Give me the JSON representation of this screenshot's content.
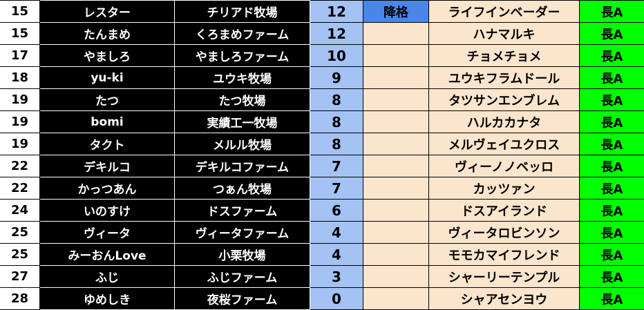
{
  "colors": {
    "score_bg": "#a4c2f4",
    "status_bg": "#fce5cd",
    "demote_bg": "#4a86e8",
    "grade_bg": "#00ff00",
    "name_bg": "#000000"
  },
  "rows": [
    {
      "rank": "15",
      "name": "レスター",
      "farm": "チリアド牧場",
      "score": "12",
      "status": "降格",
      "horse": "ライフインベーダー",
      "grade": "長A"
    },
    {
      "rank": "15",
      "name": "たんまめ",
      "farm": "くろまめファーム",
      "score": "12",
      "status": "",
      "horse": "ハナマルキ",
      "grade": "長A"
    },
    {
      "rank": "17",
      "name": "やましろ",
      "farm": "やましろファーム",
      "score": "10",
      "status": "",
      "horse": "チョメチョメ",
      "grade": "長A"
    },
    {
      "rank": "18",
      "name": "yu-ki",
      "farm": "ユウキ牧場",
      "score": "9",
      "status": "",
      "horse": "ユウキフラムドール",
      "grade": "長A"
    },
    {
      "rank": "19",
      "name": "たつ",
      "farm": "たつ牧場",
      "score": "8",
      "status": "",
      "horse": "タツサンエンブレム",
      "grade": "長A"
    },
    {
      "rank": "19",
      "name": "bomi",
      "farm": "実績工一牧場",
      "score": "8",
      "status": "",
      "horse": "ハルカカナタ",
      "grade": "長A"
    },
    {
      "rank": "19",
      "name": "タクト",
      "farm": "メルル牧場",
      "score": "8",
      "status": "",
      "horse": "メルヴェイユクロス",
      "grade": "長A"
    },
    {
      "rank": "22",
      "name": "デキルコ",
      "farm": "デキルコファーム",
      "score": "7",
      "status": "",
      "horse": "ヴィーノノベッロ",
      "grade": "長A"
    },
    {
      "rank": "22",
      "name": "かっつあん",
      "farm": "つぁん牧場",
      "score": "7",
      "status": "",
      "horse": "カッツァン",
      "grade": "長A"
    },
    {
      "rank": "24",
      "name": "いのすけ",
      "farm": "ドスファーム",
      "score": "6",
      "status": "",
      "horse": "ドスアイランド",
      "grade": "長A"
    },
    {
      "rank": "25",
      "name": "ヴィータ",
      "farm": "ヴィータファーム",
      "score": "4",
      "status": "",
      "horse": "ヴィータロビンソン",
      "grade": "長A"
    },
    {
      "rank": "25",
      "name": "みーおんLove",
      "farm": "小栗牧場",
      "score": "4",
      "status": "",
      "horse": "モモカマイフレンド",
      "grade": "長A"
    },
    {
      "rank": "27",
      "name": "ふじ",
      "farm": "ふじファーム",
      "score": "3",
      "status": "",
      "horse": "シャーリーテンプル",
      "grade": "長A"
    },
    {
      "rank": "28",
      "name": "ゆめしき",
      "farm": "夜桜ファーム",
      "score": "0",
      "status": "",
      "horse": "シャアセンヨウ",
      "grade": "長A"
    }
  ]
}
